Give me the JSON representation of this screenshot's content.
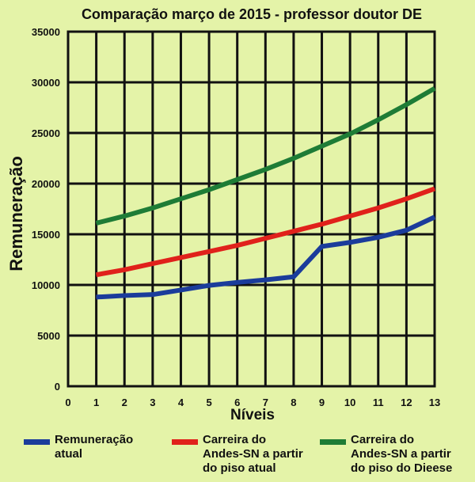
{
  "chart_data": {
    "type": "line",
    "title": "Comparação março de 2015 - professor doutor DE",
    "xlabel": "Níveis",
    "ylabel": "Remuneração",
    "x": [
      1,
      2,
      3,
      4,
      5,
      6,
      7,
      8,
      9,
      10,
      11,
      12,
      13
    ],
    "xticks": [
      0,
      1,
      2,
      3,
      4,
      5,
      6,
      7,
      8,
      9,
      10,
      11,
      12,
      13
    ],
    "xlim": [
      0,
      13
    ],
    "yticks": [
      0,
      5000,
      10000,
      15000,
      20000,
      25000,
      30000,
      35000
    ],
    "ylim": [
      0,
      35000
    ],
    "grid": true,
    "legend_position": "bottom",
    "series": [
      {
        "name": "Remuneração atual",
        "color": "#1b3c9b",
        "values": [
          8800,
          8950,
          9050,
          9500,
          9950,
          10250,
          10500,
          10800,
          13800,
          14200,
          14700,
          15400,
          16700
        ]
      },
      {
        "name": "Carreira do Andes-SN a partir do piso atual",
        "color": "#e0211b",
        "values": [
          11000,
          11500,
          12100,
          12700,
          13300,
          13900,
          14600,
          15300,
          16000,
          16800,
          17600,
          18500,
          19500
        ]
      },
      {
        "name": "Carreira do Andes-SN a partir do piso do Dieese",
        "color": "#1e7c36",
        "values": [
          16100,
          16800,
          17600,
          18500,
          19400,
          20400,
          21400,
          22500,
          23700,
          24900,
          26300,
          27800,
          29400
        ]
      }
    ],
    "legend": [
      {
        "lines": [
          "Remuneração",
          "atual"
        ]
      },
      {
        "lines": [
          "Carreira do",
          "Andes-SN a partir",
          "do piso atual"
        ]
      },
      {
        "lines": [
          "Carreira do",
          "Andes-SN a partir",
          "do piso do Dieese"
        ]
      }
    ]
  }
}
